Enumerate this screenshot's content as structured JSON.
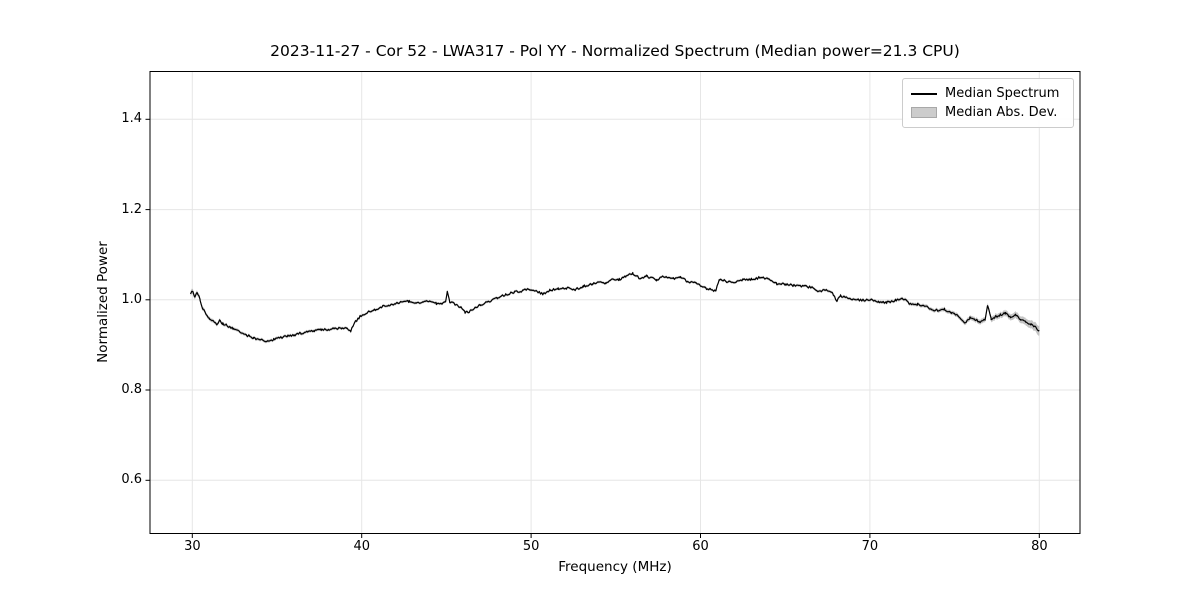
{
  "chart_data": {
    "type": "line",
    "title": "2023-11-27 - Cor 52 - LWA317 - Pol YY - Normalized Spectrum (Median power=21.3 CPU)",
    "xlabel": "Frequency (MHz)",
    "ylabel": "Normalized Power",
    "xlim": [
      27.5,
      82.4
    ],
    "ylim": [
      0.482,
      1.506
    ],
    "xticks": [
      30,
      40,
      50,
      60,
      70,
      80
    ],
    "yticks": [
      0.6,
      0.8,
      1.0,
      1.2,
      1.4
    ],
    "grid": true,
    "legend": {
      "position": "upper right",
      "entries": [
        {
          "label": "Median Spectrum",
          "type": "line",
          "color": "#000000"
        },
        {
          "label": "Median Abs. Dev.",
          "type": "patch",
          "color": "#cccccc"
        }
      ]
    },
    "series": [
      {
        "name": "Median Spectrum",
        "type": "line",
        "color": "#000000",
        "points": [
          [
            29.9,
            1.013
          ],
          [
            30.0,
            1.019
          ],
          [
            30.15,
            1.007
          ],
          [
            30.3,
            1.016
          ],
          [
            30.45,
            1.002
          ],
          [
            30.6,
            0.982
          ],
          [
            30.8,
            0.97
          ],
          [
            31.0,
            0.959
          ],
          [
            31.2,
            0.952
          ],
          [
            31.45,
            0.946
          ],
          [
            31.6,
            0.954
          ],
          [
            31.8,
            0.947
          ],
          [
            32.0,
            0.944
          ],
          [
            32.4,
            0.937
          ],
          [
            32.8,
            0.93
          ],
          [
            33.2,
            0.922
          ],
          [
            33.6,
            0.916
          ],
          [
            34.0,
            0.911
          ],
          [
            34.4,
            0.909
          ],
          [
            34.8,
            0.912
          ],
          [
            35.2,
            0.916
          ],
          [
            35.6,
            0.919
          ],
          [
            36.0,
            0.922
          ],
          [
            36.4,
            0.926
          ],
          [
            36.8,
            0.929
          ],
          [
            37.2,
            0.931
          ],
          [
            37.6,
            0.933
          ],
          [
            38.0,
            0.934
          ],
          [
            38.4,
            0.937
          ],
          [
            38.8,
            0.936
          ],
          [
            39.1,
            0.938
          ],
          [
            39.35,
            0.931
          ],
          [
            39.6,
            0.95
          ],
          [
            39.9,
            0.963
          ],
          [
            40.3,
            0.972
          ],
          [
            40.8,
            0.978
          ],
          [
            41.2,
            0.985
          ],
          [
            41.6,
            0.989
          ],
          [
            42.0,
            0.992
          ],
          [
            42.4,
            0.995
          ],
          [
            42.8,
            0.996
          ],
          [
            43.2,
            0.993
          ],
          [
            43.6,
            0.996
          ],
          [
            44.0,
            0.995
          ],
          [
            44.4,
            0.992
          ],
          [
            44.7,
            0.99
          ],
          [
            44.95,
            0.997
          ],
          [
            45.05,
            1.018
          ],
          [
            45.2,
            0.995
          ],
          [
            45.5,
            0.99
          ],
          [
            45.8,
            0.985
          ],
          [
            46.1,
            0.972
          ],
          [
            46.4,
            0.975
          ],
          [
            46.7,
            0.982
          ],
          [
            47.0,
            0.988
          ],
          [
            47.5,
            0.996
          ],
          [
            48.0,
            1.004
          ],
          [
            48.5,
            1.011
          ],
          [
            49.0,
            1.017
          ],
          [
            49.5,
            1.02
          ],
          [
            49.9,
            1.024
          ],
          [
            50.3,
            1.02
          ],
          [
            50.7,
            1.012
          ],
          [
            51.1,
            1.021
          ],
          [
            51.6,
            1.025
          ],
          [
            52.1,
            1.026
          ],
          [
            52.6,
            1.023
          ],
          [
            53.1,
            1.03
          ],
          [
            53.6,
            1.035
          ],
          [
            54.0,
            1.04
          ],
          [
            54.4,
            1.036
          ],
          [
            54.8,
            1.046
          ],
          [
            55.2,
            1.045
          ],
          [
            55.6,
            1.053
          ],
          [
            56.0,
            1.058
          ],
          [
            56.4,
            1.048
          ],
          [
            56.8,
            1.052
          ],
          [
            57.4,
            1.044
          ],
          [
            57.8,
            1.051
          ],
          [
            58.4,
            1.047
          ],
          [
            58.8,
            1.051
          ],
          [
            59.2,
            1.041
          ],
          [
            59.7,
            1.037
          ],
          [
            60.3,
            1.026
          ],
          [
            60.9,
            1.019
          ],
          [
            61.1,
            1.045
          ],
          [
            61.5,
            1.041
          ],
          [
            62.0,
            1.04
          ],
          [
            62.5,
            1.044
          ],
          [
            63.0,
            1.046
          ],
          [
            63.5,
            1.049
          ],
          [
            64.0,
            1.046
          ],
          [
            64.5,
            1.036
          ],
          [
            65.0,
            1.035
          ],
          [
            65.5,
            1.032
          ],
          [
            66.0,
            1.03
          ],
          [
            66.5,
            1.028
          ],
          [
            67.0,
            1.019
          ],
          [
            67.4,
            1.023
          ],
          [
            67.8,
            1.014
          ],
          [
            68.05,
            0.997
          ],
          [
            68.25,
            1.009
          ],
          [
            68.6,
            1.004
          ],
          [
            69.0,
            1.002
          ],
          [
            69.5,
            0.999
          ],
          [
            70.0,
            1.0
          ],
          [
            70.5,
            0.996
          ],
          [
            71.0,
            0.994
          ],
          [
            71.5,
            0.999
          ],
          [
            72.0,
            1.002
          ],
          [
            72.3,
            0.992
          ],
          [
            72.8,
            0.99
          ],
          [
            73.2,
            0.987
          ],
          [
            73.6,
            0.979
          ],
          [
            74.0,
            0.976
          ],
          [
            74.4,
            0.979
          ],
          [
            74.8,
            0.97
          ],
          [
            75.2,
            0.964
          ],
          [
            75.6,
            0.949
          ],
          [
            75.9,
            0.96
          ],
          [
            76.2,
            0.957
          ],
          [
            76.5,
            0.95
          ],
          [
            76.8,
            0.956
          ],
          [
            76.95,
            0.988
          ],
          [
            77.15,
            0.958
          ],
          [
            77.4,
            0.962
          ],
          [
            77.7,
            0.967
          ],
          [
            78.0,
            0.97
          ],
          [
            78.3,
            0.962
          ],
          [
            78.6,
            0.966
          ],
          [
            78.9,
            0.957
          ],
          [
            79.2,
            0.952
          ],
          [
            79.5,
            0.945
          ],
          [
            79.8,
            0.938
          ],
          [
            80.0,
            0.931
          ]
        ]
      },
      {
        "name": "Median Abs. Dev.",
        "type": "band",
        "color": "#9e9e9e",
        "opacity": 0.6,
        "halfwidth_anchors": [
          [
            29.9,
            0.006
          ],
          [
            30.5,
            0.0045
          ],
          [
            32.0,
            0.0035
          ],
          [
            40.0,
            0.003
          ],
          [
            50.0,
            0.0028
          ],
          [
            60.0,
            0.0028
          ],
          [
            70.0,
            0.0032
          ],
          [
            74.0,
            0.004
          ],
          [
            76.0,
            0.005
          ],
          [
            78.0,
            0.0065
          ],
          [
            79.3,
            0.008
          ],
          [
            80.0,
            0.011
          ]
        ]
      }
    ],
    "noise": {
      "seed": 20231127,
      "amplitude": 0.0025,
      "step_mhz": 0.07
    }
  },
  "colors": {
    "background": "#ffffff",
    "axis": "#000000",
    "grid": "#e6e6e6",
    "line": "#000000",
    "band": "#9e9e9e"
  }
}
